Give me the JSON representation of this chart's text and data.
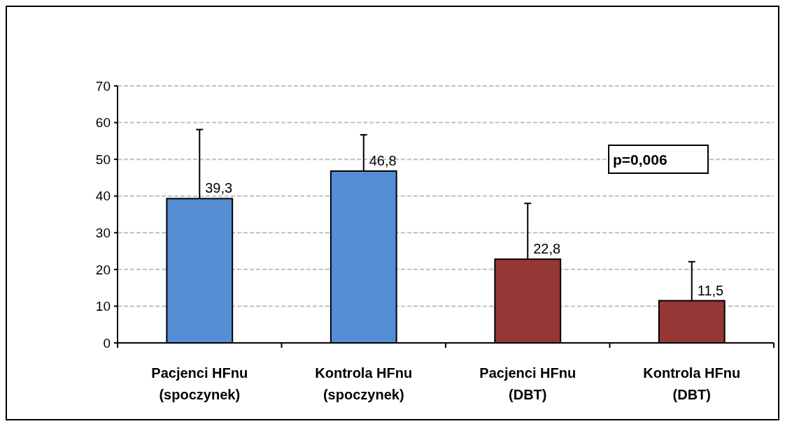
{
  "chart_data": {
    "type": "bar",
    "categories": [
      "Pacjenci HFnu\n(spoczynek)",
      "Kontrola HFnu\n(spoczynek)",
      "Pacjenci HFnu\n(DBT)",
      "Kontrola HFnu\n(DBT)"
    ],
    "values": [
      39.3,
      46.8,
      22.8,
      11.5
    ],
    "colors": [
      "#558ed5",
      "#558ed5",
      "#953735",
      "#953735"
    ],
    "errors": [
      [
        39.3,
        58.1
      ],
      [
        46.8,
        56.7
      ],
      [
        22.8,
        38.0
      ],
      [
        11.5,
        22.1
      ]
    ],
    "value_labels": [
      "39,3",
      "46,8",
      "22,8",
      "11,5"
    ],
    "ylim": [
      0,
      70
    ],
    "yticks": [
      0,
      10,
      20,
      30,
      40,
      50,
      60,
      70
    ],
    "grid": "y",
    "annotations": [
      "p=0,006"
    ]
  }
}
